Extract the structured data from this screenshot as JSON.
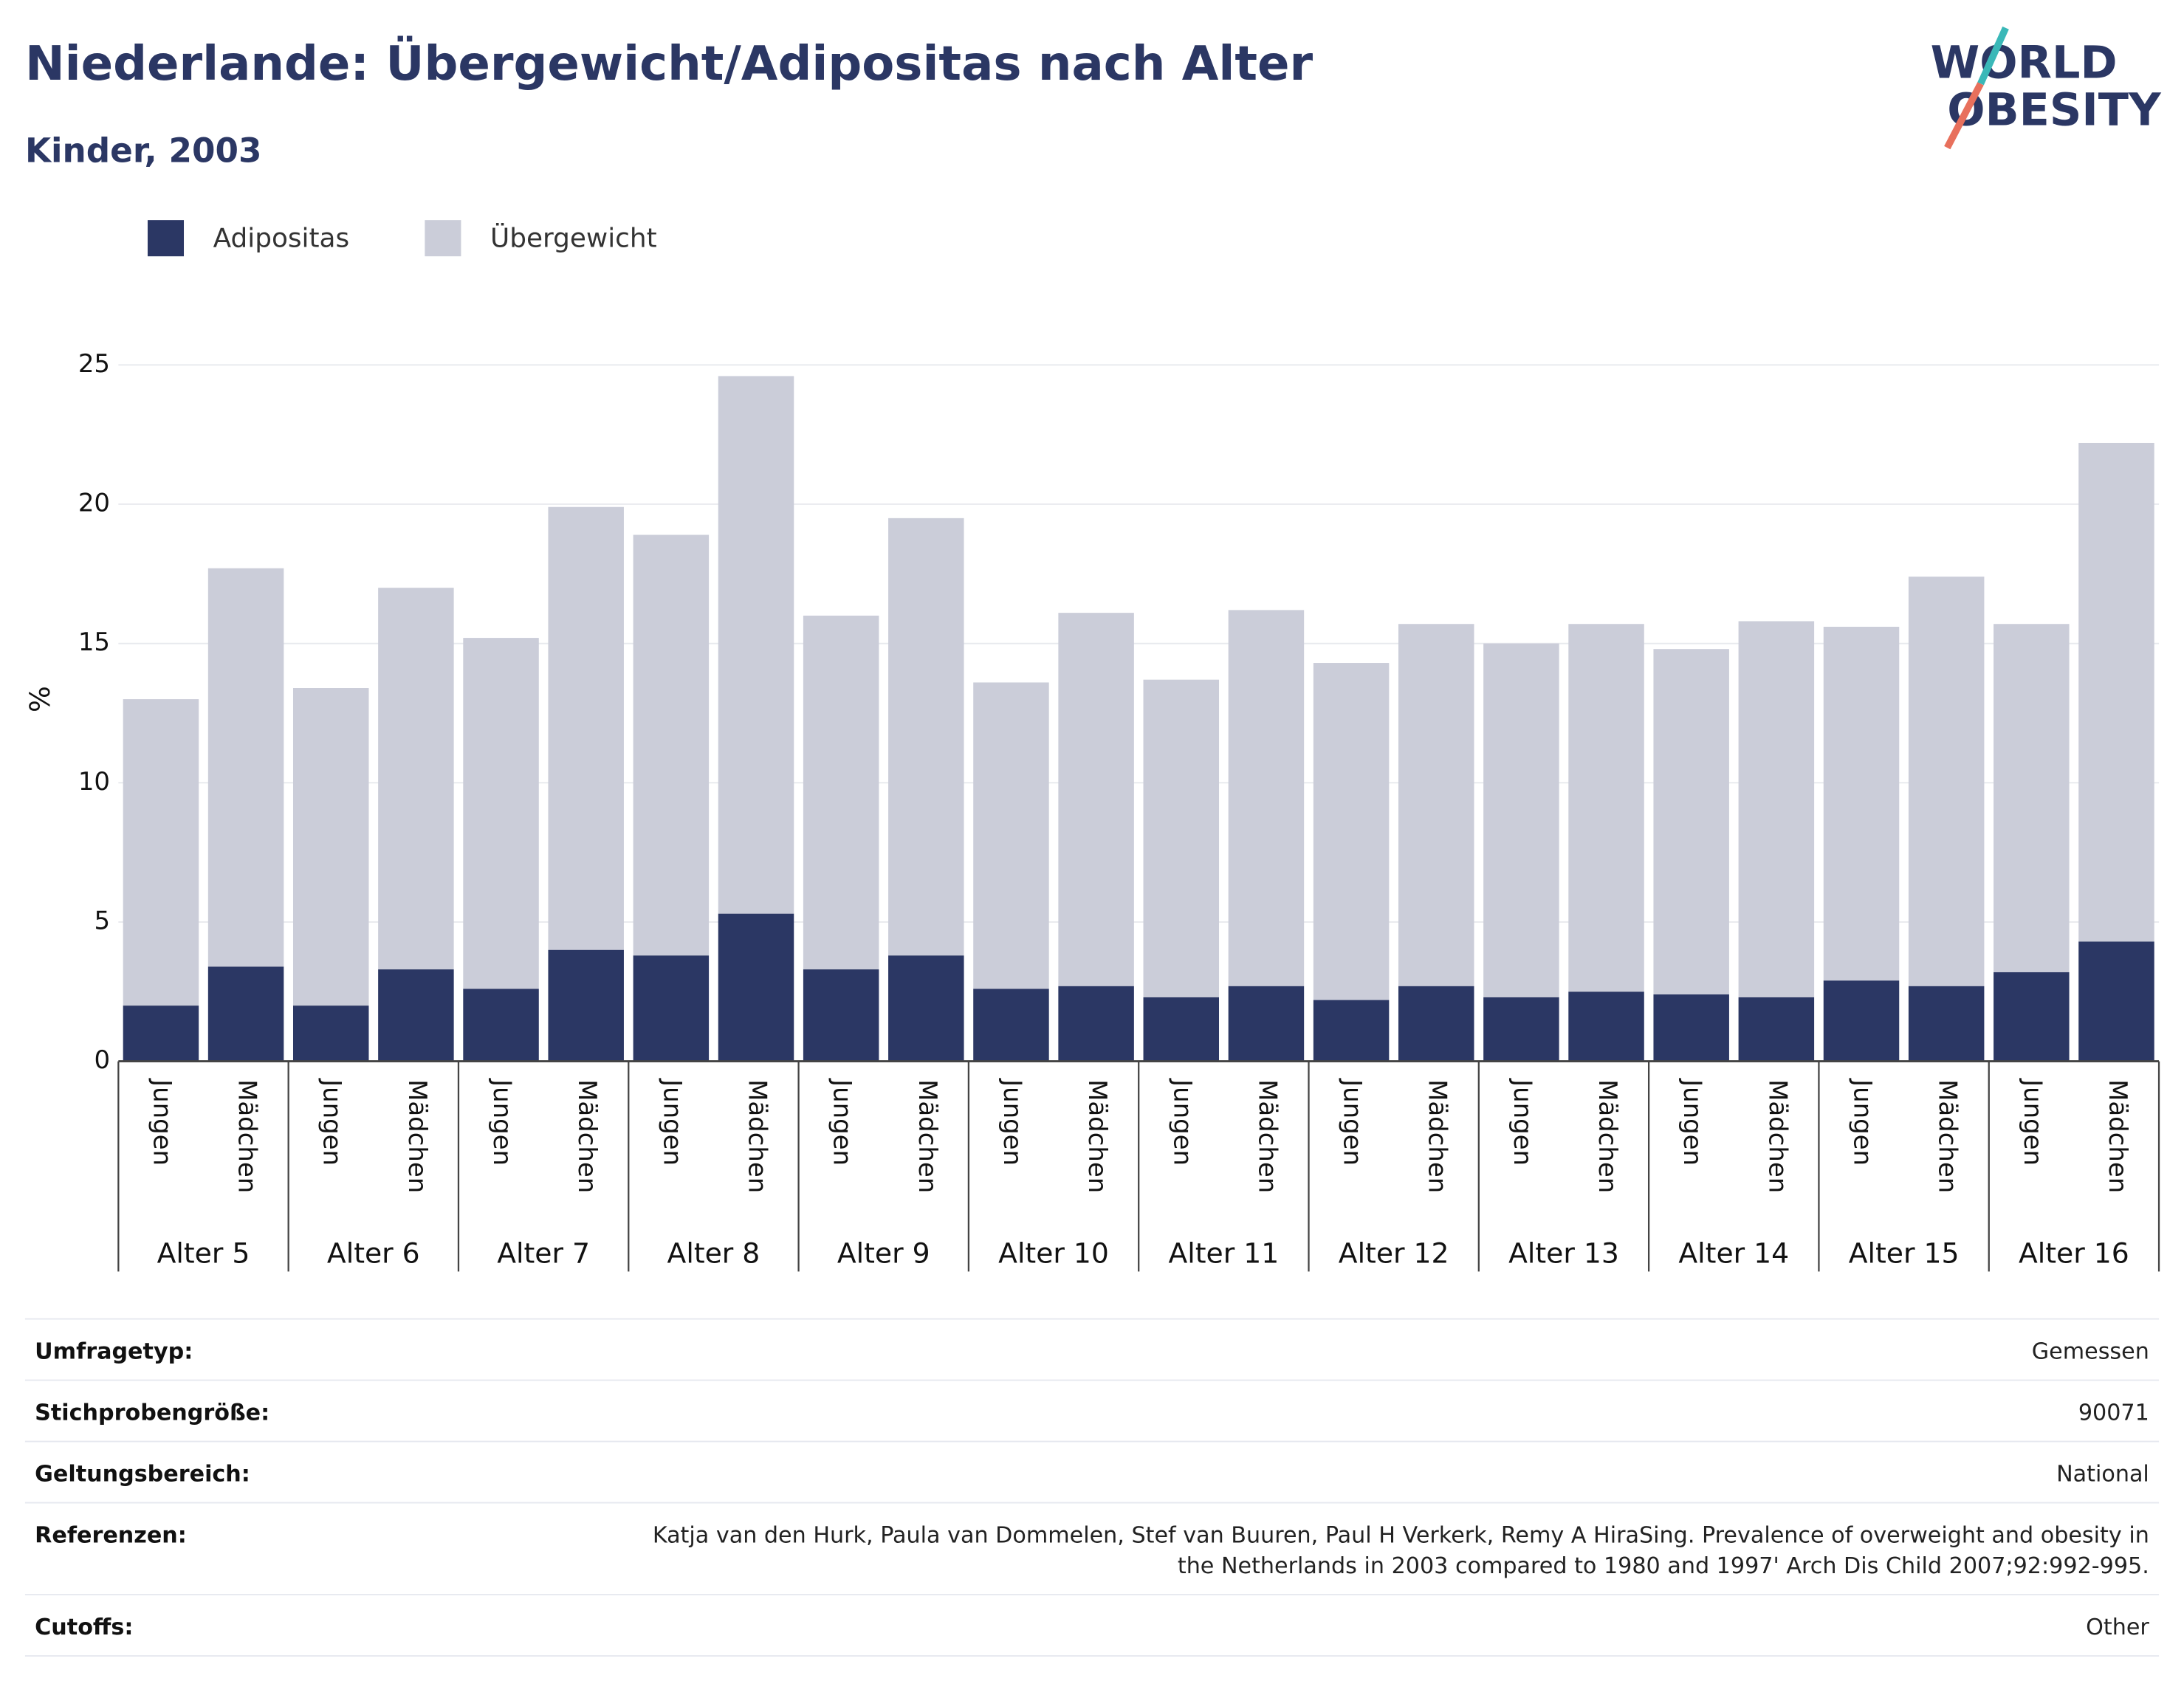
{
  "chart_data": {
    "type": "stacked_bar",
    "title": "Niederlande: Übergewicht/Adipositas nach Alter",
    "subtitle": "Kinder, 2003",
    "y_label": "%",
    "logo": [
      "WORLD",
      "OBESITY"
    ],
    "groups": [
      "Alter 5",
      "Alter 6",
      "Alter 7",
      "Alter 8",
      "Alter 9",
      "Alter 10",
      "Alter 11",
      "Alter 12",
      "Alter 13",
      "Alter 14",
      "Alter 15",
      "Alter 16"
    ],
    "categories": [
      "Jungen",
      "Mädchen",
      "Jungen",
      "Mädchen",
      "Jungen",
      "Mädchen",
      "Jungen",
      "Mädchen",
      "Jungen",
      "Mädchen",
      "Jungen",
      "Mädchen",
      "Jungen",
      "Mädchen",
      "Jungen",
      "Mädchen",
      "Jungen",
      "Mädchen",
      "Jungen",
      "Mädchen",
      "Jungen",
      "Mädchen",
      "Jungen",
      "Mädchen"
    ],
    "series": [
      {
        "name": "Adipositas",
        "color": "#2b3764",
        "values": [
          2.0,
          3.4,
          2.0,
          3.3,
          2.6,
          4.0,
          3.8,
          5.3,
          3.3,
          3.8,
          2.6,
          2.7,
          2.3,
          2.7,
          2.2,
          2.7,
          2.3,
          2.5,
          2.4,
          2.3,
          2.9,
          2.7,
          3.2,
          4.3
        ]
      },
      {
        "name": "Übergewicht",
        "color": "#cbcdd9",
        "values": [
          11.0,
          14.3,
          11.4,
          13.7,
          12.6,
          15.9,
          15.1,
          19.3,
          12.7,
          15.7,
          11.0,
          13.4,
          11.4,
          13.5,
          12.1,
          13.0,
          12.7,
          13.2,
          12.4,
          13.5,
          12.7,
          14.7,
          12.5,
          17.9
        ]
      }
    ],
    "ylim": [
      0,
      25
    ],
    "yticks": [
      0,
      5,
      10,
      15,
      20,
      25
    ],
    "grid": true,
    "legend": "top-left"
  },
  "details": [
    {
      "label": "Umfragetyp:",
      "value": [
        "Gemessen"
      ]
    },
    {
      "label": "Stichprobengröße:",
      "value": [
        "90071"
      ]
    },
    {
      "label": "Geltungsbereich:",
      "value": [
        "National"
      ]
    },
    {
      "label": "Referenzen:",
      "value": [
        "Katja van den Hurk, Paula van Dommelen, Stef van Buuren, Paul H Verkerk, Remy A HiraSing. Prevalence of overweight and obesity in",
        "the Netherlands in 2003 compared to 1980 and 1997' Arch Dis Child 2007;92:992-995."
      ]
    },
    {
      "label": "Cutoffs:",
      "value": [
        "Other"
      ]
    }
  ]
}
